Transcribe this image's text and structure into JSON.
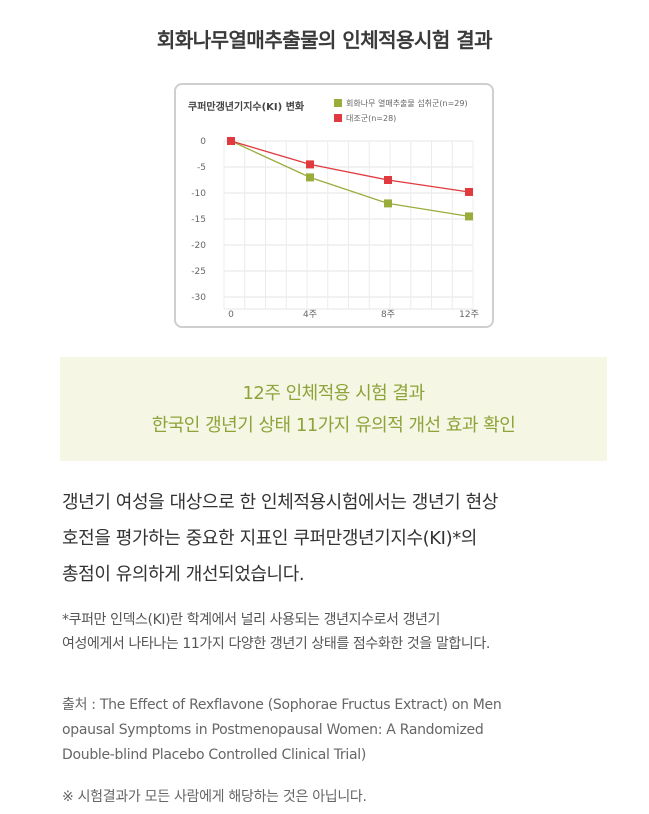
{
  "page": {
    "title": "회화나무열매추출물의 인체적용시험 결과"
  },
  "banner": {
    "line1": "12주 인체적용 시험 결과",
    "line2": "한국인 갱년기 상태 11가지 유의적 개선 효과 확인"
  },
  "body": {
    "line1": "갱년기 여성을 대상으로 한 인체적용시험에서는 갱년기 현상",
    "line2": "호전을 평가하는 중요한 지표인 쿠퍼만갱년기지수(KI)*의",
    "line3": "총점이 유의하게 개선되었습니다."
  },
  "footnote": {
    "line1": "*쿠퍼만 인덱스(KI)란 학계에서 널리 사용되는 갱년지수로서 갱년기",
    "line2": "여성에게서 나타나는 11가지 다양한 갱년기 상태를 점수화한 것을 말합니다."
  },
  "source": {
    "line1": "출처 : The Effect of Rexflavone (Sophorae Fructus Extract) on Men",
    "line2": "opausal Symptoms in Postmenopausal Women: A Randomized",
    "line3": "Double-blind Placebo Controlled Clinical Trial)"
  },
  "disclaimer": "※ 시험결과가 모든 사람에게 해당하는 것은 아닙니다.",
  "chart_data": {
    "type": "line",
    "title": "쿠퍼만갱년기지수(KI) 변화",
    "categories": [
      "0",
      "4주",
      "8주",
      "12주"
    ],
    "ylim": [
      -30,
      0
    ],
    "yticks": [
      "0",
      "-5",
      "-10",
      "-15",
      "-20",
      "-25",
      "-30"
    ],
    "grid": true,
    "legend_position": "top-right",
    "series": [
      {
        "name": "회화나무 열매추출물 섭취군(n=29)",
        "values": [
          0,
          -7,
          -12,
          -14.5
        ],
        "color": "#9aad3c"
      },
      {
        "name": "대조군(n=28)",
        "values": [
          0,
          -4.5,
          -7.5,
          -9.8
        ],
        "color": "#e03a3e"
      }
    ]
  }
}
